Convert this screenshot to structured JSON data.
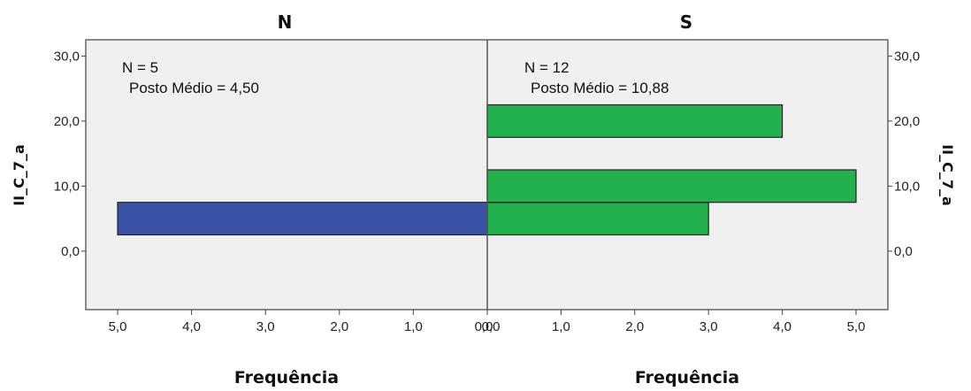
{
  "chart_data": {
    "type": "bar",
    "orientation": "horizontal",
    "ylabel": "II_C_7_a",
    "xlabel": "Frequência",
    "ylim": [
      -9,
      32.5
    ],
    "yticks": [
      "0,0",
      "10,0",
      "20,0",
      "30,0"
    ],
    "xticks_left": [
      "5,0",
      "4,0",
      "3,0",
      "2,0",
      "1,0",
      "0,0"
    ],
    "xticks_right": [
      "0,0",
      "1,0",
      "2,0",
      "3,0",
      "4,0",
      "5,0"
    ],
    "xlim": [
      0,
      5
    ],
    "panels": [
      {
        "name": "N",
        "side": "left",
        "color": "#3a52a6",
        "annotation_n": "N = 5",
        "annotation_rank": "Posto Médio = 4,50",
        "bars": [
          {
            "y_start": 2.5,
            "y_end": 7.5,
            "count": 5
          }
        ]
      },
      {
        "name": "S",
        "side": "right",
        "color": "#23b14d",
        "annotation_n": "N = 12",
        "annotation_rank": "Posto Médio = 10,88",
        "bars": [
          {
            "y_start": 2.5,
            "y_end": 7.5,
            "count": 3
          },
          {
            "y_start": 7.5,
            "y_end": 12.5,
            "count": 5
          },
          {
            "y_start": 17.5,
            "y_end": 22.5,
            "count": 4
          }
        ]
      }
    ],
    "background": "#f0f0f0",
    "grid": false
  }
}
